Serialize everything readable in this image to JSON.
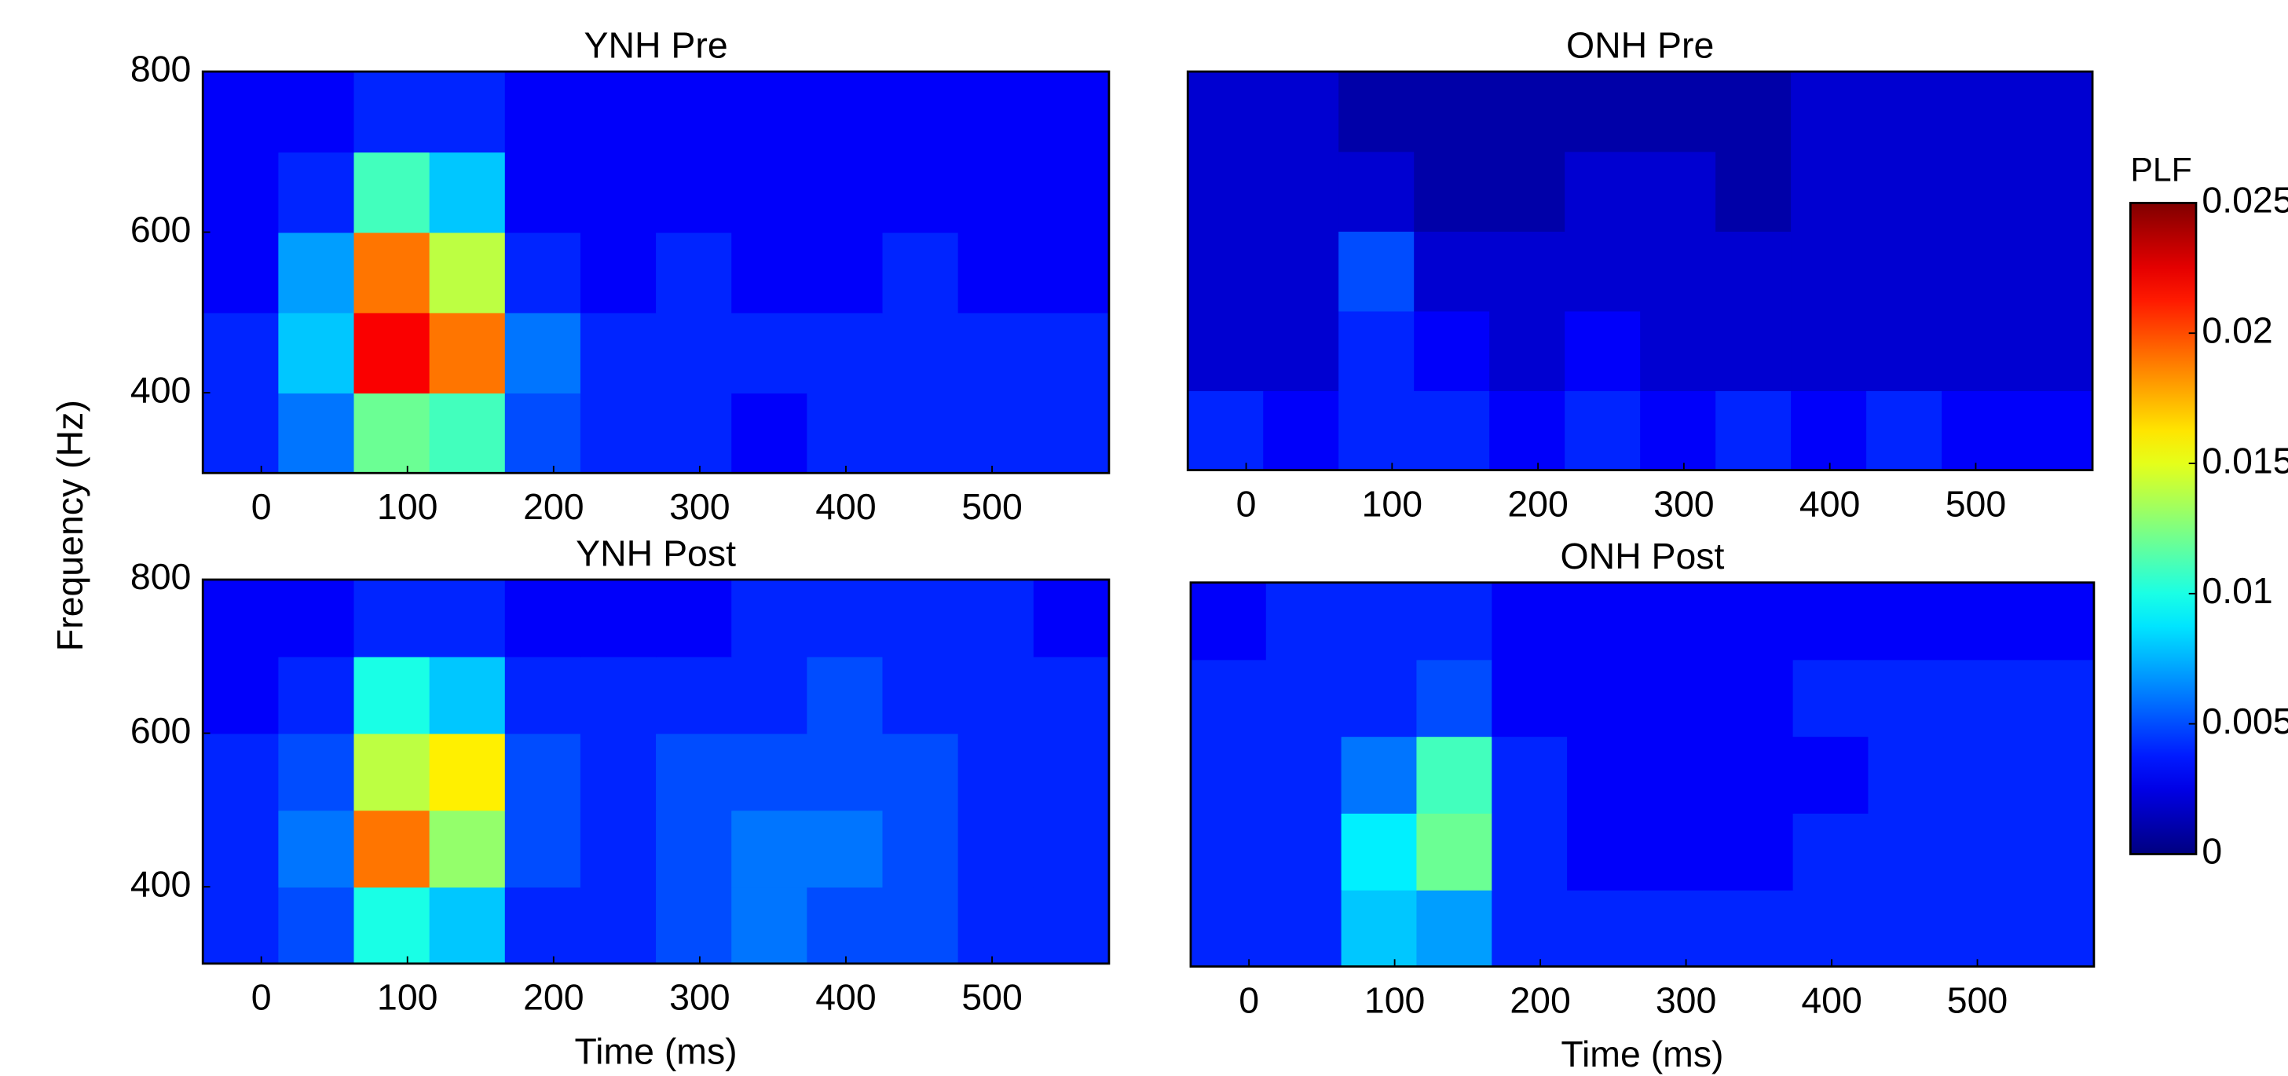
{
  "chart_data": [
    {
      "type": "heatmap",
      "title": "YNH Pre",
      "xlim": [
        -40,
        580
      ],
      "ylim": [
        300,
        800
      ],
      "xticks": [
        0,
        100,
        200,
        300,
        400,
        500
      ],
      "yticks": [
        400,
        600,
        800
      ],
      "z": [
        [
          0.004,
          0.006,
          0.012,
          0.011,
          0.005,
          0.004,
          0.004,
          0.003,
          0.004,
          0.004,
          0.004,
          0.004
        ],
        [
          0.004,
          0.008,
          0.022,
          0.019,
          0.006,
          0.004,
          0.004,
          0.004,
          0.004,
          0.004,
          0.004,
          0.004
        ],
        [
          0.003,
          0.007,
          0.019,
          0.014,
          0.004,
          0.003,
          0.004,
          0.003,
          0.003,
          0.004,
          0.003,
          0.003
        ],
        [
          0.003,
          0.004,
          0.011,
          0.008,
          0.003,
          0.003,
          0.003,
          0.003,
          0.003,
          0.003,
          0.003,
          0.003
        ],
        [
          0.003,
          0.003,
          0.004,
          0.004,
          0.003,
          0.003,
          0.003,
          0.003,
          0.003,
          0.003,
          0.003,
          0.003
        ]
      ]
    },
    {
      "type": "heatmap",
      "title": "ONH Pre",
      "xlim": [
        -40,
        580
      ],
      "ylim": [
        300,
        800
      ],
      "xticks": [
        0,
        100,
        200,
        300,
        400,
        500
      ],
      "z": [
        [
          0.004,
          0.003,
          0.004,
          0.004,
          0.003,
          0.004,
          0.003,
          0.004,
          0.003,
          0.004,
          0.003,
          0.003
        ],
        [
          0.002,
          0.002,
          0.004,
          0.003,
          0.002,
          0.003,
          0.002,
          0.002,
          0.002,
          0.002,
          0.002,
          0.002
        ],
        [
          0.002,
          0.002,
          0.005,
          0.002,
          0.002,
          0.002,
          0.002,
          0.002,
          0.002,
          0.002,
          0.002,
          0.002
        ],
        [
          0.002,
          0.002,
          0.002,
          0.001,
          0.001,
          0.002,
          0.002,
          0.001,
          0.002,
          0.002,
          0.002,
          0.002
        ],
        [
          0.002,
          0.002,
          0.001,
          0.001,
          0.001,
          0.001,
          0.001,
          0.001,
          0.002,
          0.002,
          0.002,
          0.002
        ]
      ]
    },
    {
      "type": "heatmap",
      "title": "YNH Post",
      "x_label": "Time (ms)",
      "xlim": [
        -40,
        580
      ],
      "ylim": [
        300,
        800
      ],
      "xticks": [
        0,
        100,
        200,
        300,
        400,
        500
      ],
      "yticks": [
        400,
        600,
        800
      ],
      "z": [
        [
          0.004,
          0.005,
          0.01,
          0.008,
          0.004,
          0.004,
          0.005,
          0.006,
          0.005,
          0.005,
          0.004,
          0.004
        ],
        [
          0.004,
          0.006,
          0.019,
          0.013,
          0.005,
          0.004,
          0.005,
          0.006,
          0.006,
          0.005,
          0.004,
          0.004
        ],
        [
          0.004,
          0.005,
          0.014,
          0.016,
          0.005,
          0.004,
          0.005,
          0.005,
          0.005,
          0.005,
          0.004,
          0.004
        ],
        [
          0.003,
          0.004,
          0.01,
          0.008,
          0.004,
          0.004,
          0.004,
          0.004,
          0.005,
          0.004,
          0.004,
          0.004
        ],
        [
          0.003,
          0.003,
          0.004,
          0.004,
          0.003,
          0.003,
          0.003,
          0.004,
          0.004,
          0.004,
          0.004,
          0.003
        ]
      ]
    },
    {
      "type": "heatmap",
      "title": "ONH Post",
      "x_label": "Time (ms)",
      "xlim": [
        -40,
        580
      ],
      "ylim": [
        300,
        800
      ],
      "xticks": [
        0,
        100,
        200,
        300,
        400,
        500
      ],
      "z": [
        [
          0.004,
          0.004,
          0.008,
          0.007,
          0.004,
          0.004,
          0.004,
          0.004,
          0.004,
          0.004,
          0.004,
          0.004
        ],
        [
          0.004,
          0.004,
          0.009,
          0.012,
          0.004,
          0.003,
          0.003,
          0.003,
          0.004,
          0.004,
          0.004,
          0.004
        ],
        [
          0.004,
          0.004,
          0.006,
          0.011,
          0.004,
          0.003,
          0.003,
          0.003,
          0.003,
          0.004,
          0.004,
          0.004
        ],
        [
          0.004,
          0.004,
          0.004,
          0.005,
          0.003,
          0.003,
          0.003,
          0.003,
          0.004,
          0.004,
          0.004,
          0.004
        ],
        [
          0.003,
          0.004,
          0.004,
          0.004,
          0.003,
          0.003,
          0.003,
          0.003,
          0.003,
          0.003,
          0.003,
          0.003
        ]
      ]
    }
  ],
  "y_label": "Frequency (Hz)",
  "colorbar": {
    "label": "PLF",
    "colormap": "jet",
    "lim": [
      0,
      0.025
    ],
    "ticks": [
      0,
      0.005,
      0.01,
      0.015,
      0.02,
      0.025
    ]
  }
}
